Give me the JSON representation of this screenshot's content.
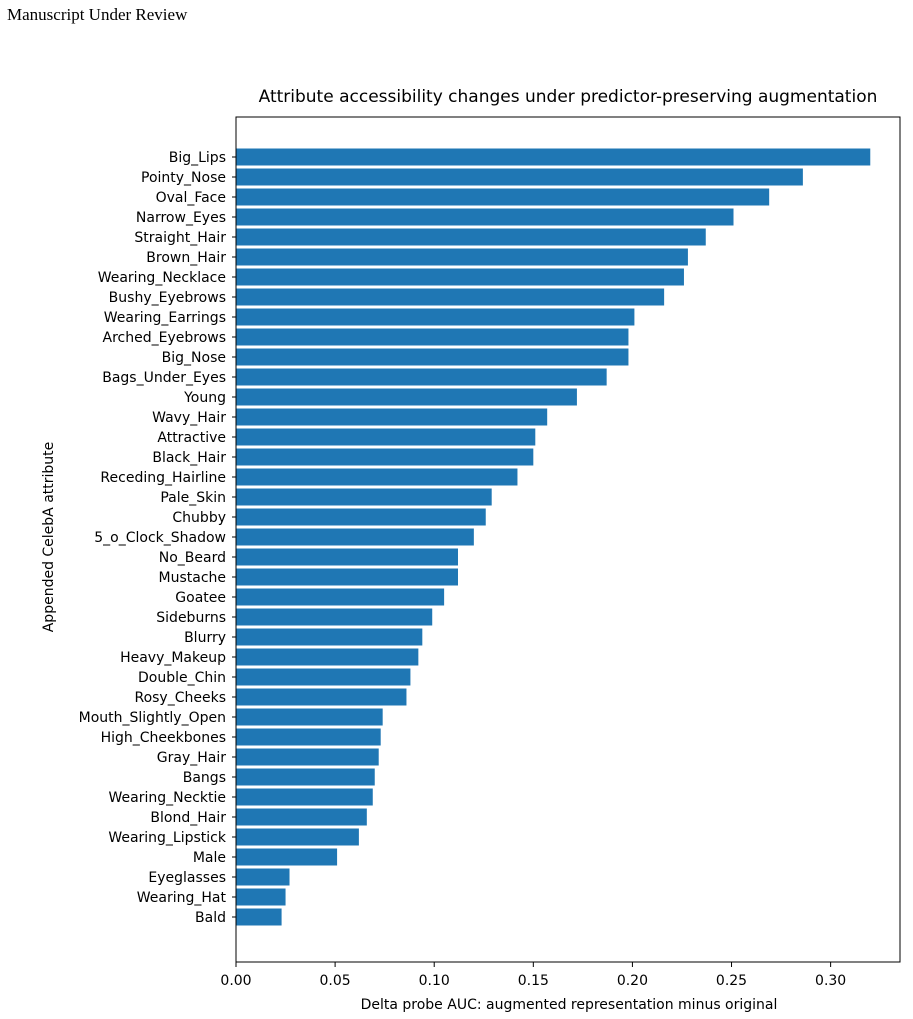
{
  "page": {
    "header": "Manuscript Under Review"
  },
  "chart_data": {
    "type": "bar",
    "orientation": "horizontal",
    "title": "Attribute accessibility changes under predictor-preserving augmentation",
    "xlabel": "Delta probe AUC: augmented representation minus original",
    "ylabel": "Appended CelebA attribute",
    "xlim": [
      0,
      0.335
    ],
    "xticks": [
      "0.00",
      "0.05",
      "0.10",
      "0.15",
      "0.20",
      "0.25",
      "0.30"
    ],
    "bar_color": "#1f77b4",
    "grid": false,
    "categories": [
      "Big_Lips",
      "Pointy_Nose",
      "Oval_Face",
      "Narrow_Eyes",
      "Straight_Hair",
      "Brown_Hair",
      "Wearing_Necklace",
      "Bushy_Eyebrows",
      "Wearing_Earrings",
      "Arched_Eyebrows",
      "Big_Nose",
      "Bags_Under_Eyes",
      "Young",
      "Wavy_Hair",
      "Attractive",
      "Black_Hair",
      "Receding_Hairline",
      "Pale_Skin",
      "Chubby",
      "5_o_Clock_Shadow",
      "No_Beard",
      "Mustache",
      "Goatee",
      "Sideburns",
      "Blurry",
      "Heavy_Makeup",
      "Double_Chin",
      "Rosy_Cheeks",
      "Mouth_Slightly_Open",
      "High_Cheekbones",
      "Gray_Hair",
      "Bangs",
      "Wearing_Necktie",
      "Blond_Hair",
      "Wearing_Lipstick",
      "Male",
      "Eyeglasses",
      "Wearing_Hat",
      "Bald"
    ],
    "values": [
      0.32,
      0.286,
      0.269,
      0.251,
      0.237,
      0.228,
      0.226,
      0.216,
      0.201,
      0.198,
      0.198,
      0.187,
      0.172,
      0.157,
      0.151,
      0.15,
      0.142,
      0.129,
      0.126,
      0.12,
      0.112,
      0.112,
      0.105,
      0.099,
      0.094,
      0.092,
      0.088,
      0.086,
      0.074,
      0.073,
      0.072,
      0.07,
      0.069,
      0.066,
      0.062,
      0.051,
      0.027,
      0.025,
      0.023
    ]
  }
}
